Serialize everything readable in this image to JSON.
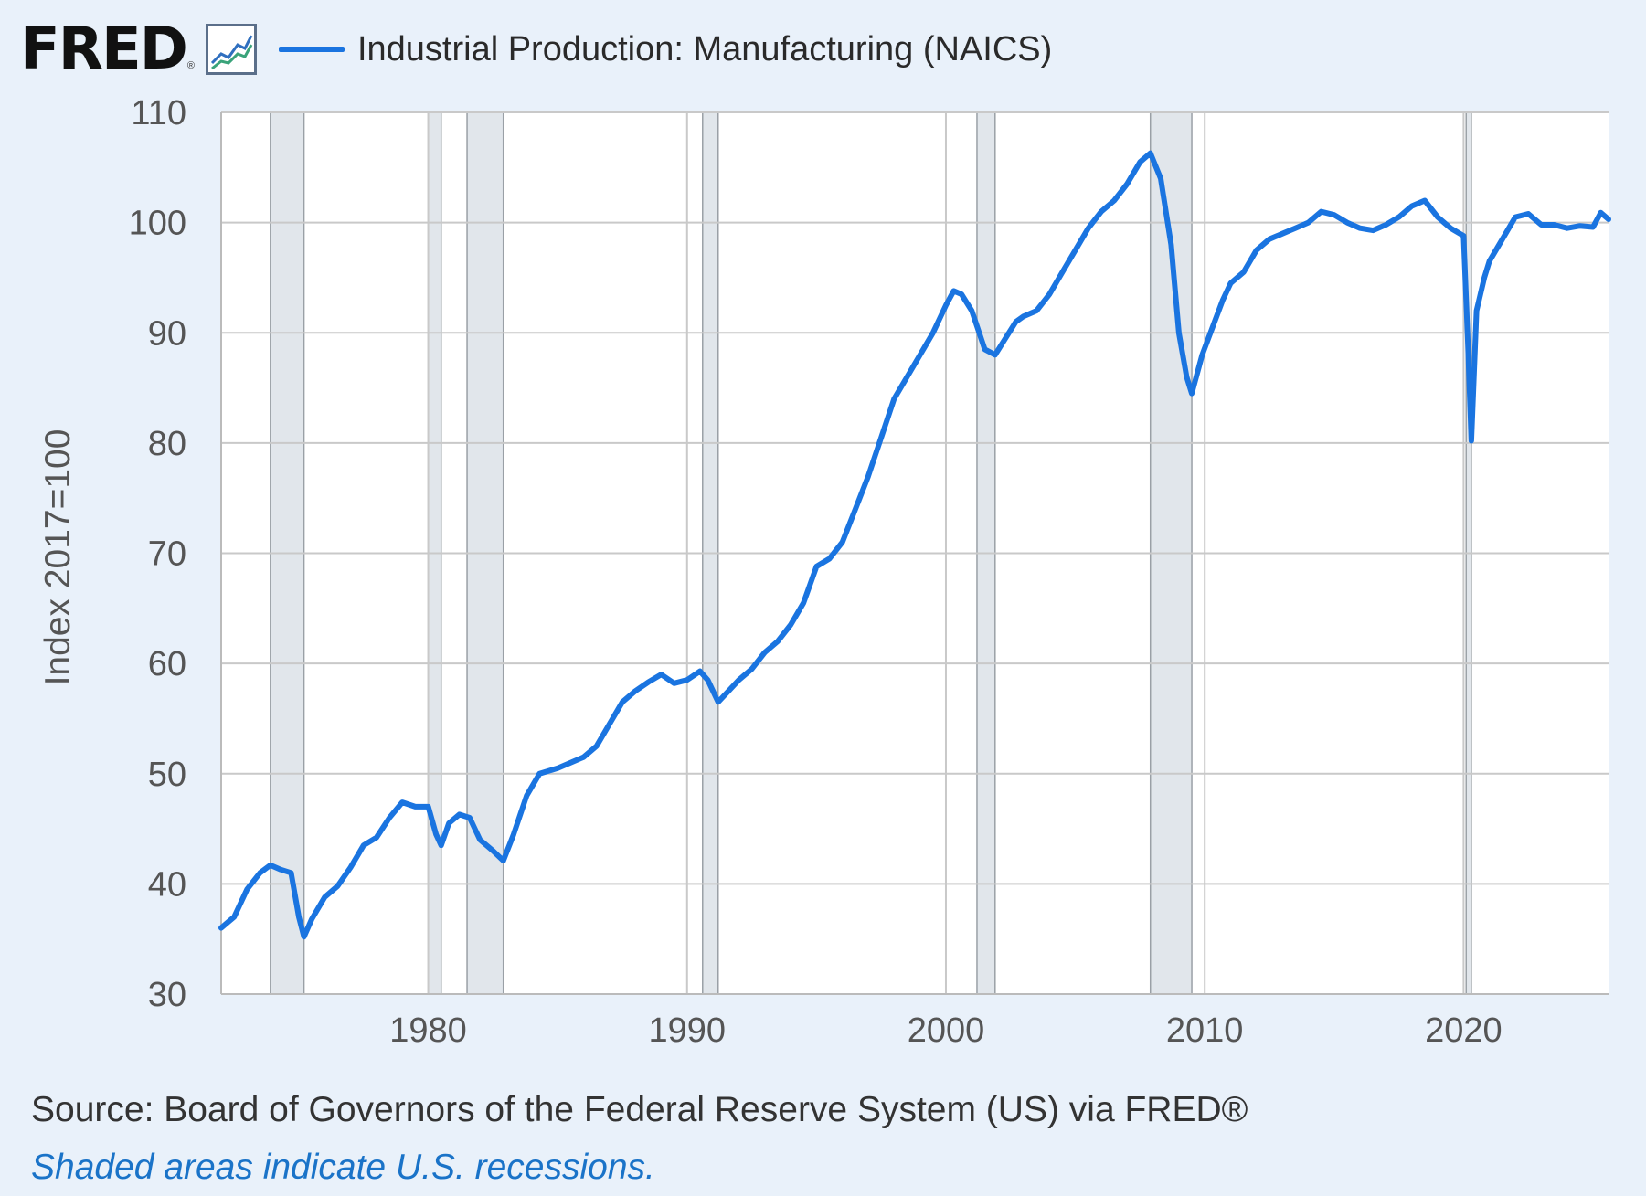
{
  "header": {
    "logo_text": "FRED",
    "logo_reg": "®",
    "logo_icon": "chart-line-icon"
  },
  "colors": {
    "series": "#1a74e0",
    "recession": "#e1e6eb",
    "grid": "#c9c9c9",
    "plot_bg": "#ffffff",
    "page_bg": "#e9f1fa",
    "axis_text": "#555555"
  },
  "chart_data": {
    "type": "line",
    "title": "",
    "xlabel": "",
    "ylabel": "Index 2017=100",
    "xlim": [
      1972.0,
      2025.6
    ],
    "ylim": [
      30,
      110
    ],
    "x_ticks": [
      1980,
      1990,
      2000,
      2010,
      2020
    ],
    "x_tick_labels": [
      "1980",
      "1990",
      "2000",
      "2010",
      "2020"
    ],
    "y_ticks": [
      30,
      40,
      50,
      60,
      70,
      80,
      90,
      100,
      110
    ],
    "y_tick_labels": [
      "30",
      "40",
      "50",
      "60",
      "70",
      "80",
      "90",
      "100",
      "110"
    ],
    "grid": true,
    "legend_placement": "top-left",
    "recessions": [
      [
        1973.9,
        1975.2
      ],
      [
        1980.0,
        1980.5
      ],
      [
        1981.5,
        1982.9
      ],
      [
        1990.6,
        1991.2
      ],
      [
        2001.2,
        2001.9
      ],
      [
        2007.9,
        2009.5
      ],
      [
        2020.1,
        2020.3
      ]
    ],
    "series": [
      {
        "name": "Industrial Production: Manufacturing (NAICS)",
        "x": [
          1972.0,
          1972.5,
          1973.0,
          1973.5,
          1973.9,
          1974.3,
          1974.7,
          1975.0,
          1975.2,
          1975.5,
          1976.0,
          1976.5,
          1977.0,
          1977.5,
          1978.0,
          1978.5,
          1979.0,
          1979.5,
          1980.0,
          1980.3,
          1980.5,
          1980.8,
          1981.2,
          1981.6,
          1982.0,
          1982.5,
          1982.9,
          1983.3,
          1983.8,
          1984.3,
          1985.0,
          1985.5,
          1986.0,
          1986.5,
          1987.0,
          1987.5,
          1988.0,
          1988.5,
          1989.0,
          1989.5,
          1990.0,
          1990.5,
          1990.8,
          1991.2,
          1991.6,
          1992.0,
          1992.5,
          1993.0,
          1993.5,
          1994.0,
          1994.5,
          1995.0,
          1995.5,
          1996.0,
          1996.5,
          1997.0,
          1997.5,
          1998.0,
          1998.5,
          1999.0,
          1999.5,
          2000.0,
          2000.3,
          2000.6,
          2001.0,
          2001.5,
          2001.9,
          2002.3,
          2002.7,
          2003.0,
          2003.5,
          2004.0,
          2004.5,
          2005.0,
          2005.5,
          2006.0,
          2006.5,
          2007.0,
          2007.5,
          2007.9,
          2008.3,
          2008.7,
          2009.0,
          2009.3,
          2009.5,
          2009.9,
          2010.3,
          2010.7,
          2011.0,
          2011.5,
          2012.0,
          2012.5,
          2013.0,
          2013.5,
          2014.0,
          2014.5,
          2015.0,
          2015.5,
          2016.0,
          2016.5,
          2017.0,
          2017.5,
          2018.0,
          2018.5,
          2019.0,
          2019.5,
          2020.0,
          2020.15,
          2020.3,
          2020.5,
          2020.8,
          2021.0,
          2021.5,
          2022.0,
          2022.5,
          2023.0,
          2023.5,
          2024.0,
          2024.5,
          2025.0,
          2025.3,
          2025.6
        ],
        "y": [
          36.0,
          37.0,
          39.5,
          41.0,
          41.7,
          41.3,
          41.0,
          37.0,
          35.2,
          36.8,
          38.8,
          39.8,
          41.5,
          43.5,
          44.2,
          46.0,
          47.4,
          47.0,
          47.0,
          44.5,
          43.5,
          45.5,
          46.3,
          46.0,
          44.0,
          43.0,
          42.1,
          44.5,
          48.0,
          50.0,
          50.5,
          51.0,
          51.5,
          52.5,
          54.5,
          56.5,
          57.5,
          58.3,
          59.0,
          58.2,
          58.5,
          59.3,
          58.5,
          56.5,
          57.5,
          58.5,
          59.5,
          61.0,
          62.0,
          63.5,
          65.5,
          68.8,
          69.5,
          71.0,
          74.0,
          77.0,
          80.5,
          84.0,
          86.0,
          88.0,
          90.0,
          92.5,
          93.8,
          93.5,
          92.0,
          88.5,
          88.0,
          89.5,
          91.0,
          91.5,
          92.0,
          93.5,
          95.5,
          97.5,
          99.5,
          101.0,
          102.0,
          103.5,
          105.5,
          106.3,
          104.0,
          98.0,
          90.0,
          86.0,
          84.5,
          88.0,
          90.5,
          93.0,
          94.5,
          95.5,
          97.5,
          98.5,
          99.0,
          99.5,
          100.0,
          101.0,
          100.7,
          100.0,
          99.5,
          99.3,
          99.8,
          100.5,
          101.5,
          102.0,
          100.5,
          99.5,
          98.8,
          90.0,
          80.2,
          92.0,
          95.0,
          96.5,
          98.5,
          100.5,
          100.8,
          99.8,
          99.8,
          99.5,
          99.7,
          99.6,
          100.9,
          100.3
        ]
      }
    ]
  },
  "footer": {
    "source": "Source: Board of Governors of the Federal Reserve System (US) via FRED®",
    "note": "Shaded areas indicate U.S. recessions."
  }
}
